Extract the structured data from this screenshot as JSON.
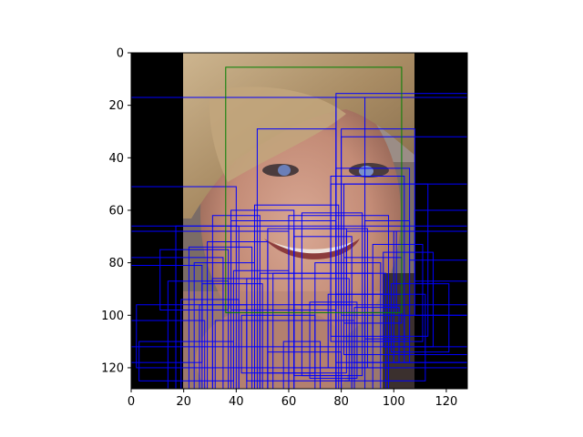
{
  "chart_data": {
    "type": "image",
    "title": "",
    "xlabel": "",
    "ylabel": "",
    "xlim": [
      0,
      128
    ],
    "ylim": [
      128,
      0
    ],
    "y_axis_inverted": true,
    "x_ticks": [
      "0",
      "20",
      "40",
      "60",
      "80",
      "100",
      "120"
    ],
    "y_ticks": [
      "0",
      "20",
      "40",
      "60",
      "80",
      "100",
      "120"
    ],
    "image_description_colors": {
      "background_pad": "#000000",
      "skin": "#c79580",
      "hair": "#b39a73",
      "backdrop": "#7a6a63"
    },
    "image_content_x_range": [
      20,
      108
    ],
    "green_box": {
      "color": "#008000",
      "x1": 36,
      "y1": 5.5,
      "x2": 103,
      "y2": 99
    },
    "blue_box_color": "#0000ff",
    "blue_boxes": [
      [
        0,
        17,
        128,
        128
      ],
      [
        0,
        51,
        40,
        128
      ],
      [
        0,
        66,
        128,
        128
      ],
      [
        0,
        68,
        60,
        128
      ],
      [
        0,
        78,
        35,
        128
      ],
      [
        0,
        81,
        27,
        118
      ],
      [
        2,
        96,
        128,
        120
      ],
      [
        0,
        112,
        128,
        128
      ],
      [
        78,
        15.5,
        128,
        128
      ],
      [
        78,
        17,
        89,
        128
      ],
      [
        80,
        32,
        128,
        128
      ],
      [
        80,
        29,
        108,
        100
      ],
      [
        78,
        44,
        106,
        118
      ],
      [
        76,
        47,
        104,
        110
      ],
      [
        76,
        50,
        113,
        108
      ],
      [
        81,
        50,
        128,
        115
      ],
      [
        48,
        29,
        78,
        128
      ],
      [
        47,
        58,
        79,
        128
      ],
      [
        38,
        60,
        62,
        128
      ],
      [
        31,
        62,
        49,
        128
      ],
      [
        38,
        64,
        78,
        98
      ],
      [
        62,
        67,
        90,
        120
      ],
      [
        65,
        61,
        88,
        123
      ],
      [
        60,
        62,
        98,
        128
      ],
      [
        52,
        67,
        82,
        122
      ],
      [
        62,
        70,
        84,
        128
      ],
      [
        54,
        84,
        97,
        128
      ],
      [
        49,
        84,
        92,
        128
      ],
      [
        70,
        80,
        95,
        128
      ],
      [
        44,
        86,
        83,
        125
      ],
      [
        39,
        83,
        60,
        128
      ],
      [
        31,
        86,
        52,
        128
      ],
      [
        27,
        88,
        50,
        128
      ],
      [
        29,
        72,
        52,
        128
      ],
      [
        24,
        80,
        47,
        128
      ],
      [
        22,
        74,
        46,
        128
      ],
      [
        17,
        66,
        41,
        128
      ],
      [
        11,
        75,
        37,
        98
      ],
      [
        14,
        87,
        37,
        128
      ],
      [
        19,
        94,
        41,
        128
      ],
      [
        32,
        102,
        85,
        128
      ],
      [
        68,
        95,
        86,
        124
      ],
      [
        75,
        92,
        98,
        120
      ],
      [
        85,
        97,
        102,
        118
      ],
      [
        81,
        78,
        103,
        103
      ],
      [
        82,
        68,
        101,
        99
      ],
      [
        89,
        64,
        106,
        109
      ],
      [
        92,
        73,
        111,
        110
      ],
      [
        96,
        76,
        115,
        112
      ],
      [
        100,
        68,
        128,
        118
      ],
      [
        99,
        88,
        121,
        114
      ],
      [
        106,
        79,
        128,
        100
      ],
      [
        108,
        60,
        128,
        87
      ],
      [
        104,
        100,
        128,
        118
      ],
      [
        78,
        92,
        112,
        125
      ],
      [
        52,
        114,
        80,
        128
      ],
      [
        58,
        110,
        72,
        128
      ],
      [
        62,
        96,
        84,
        123
      ],
      [
        42,
        100,
        70,
        122
      ],
      [
        26,
        96,
        44,
        128
      ],
      [
        0,
        102,
        28,
        128
      ],
      [
        3,
        110,
        39,
        125
      ]
    ]
  }
}
